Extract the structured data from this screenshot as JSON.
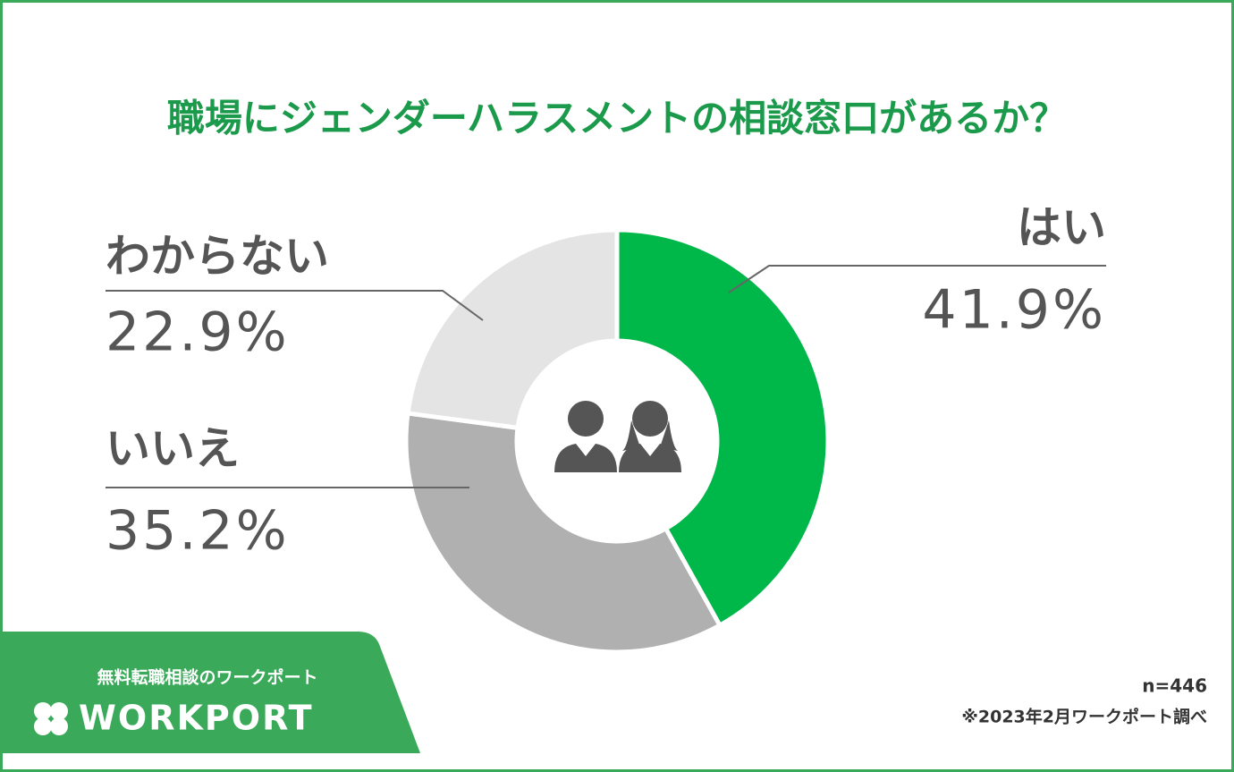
{
  "chart_data": {
    "type": "donut",
    "title": "職場にジェンダーハラスメントの相談窓口があるか？",
    "categories": [
      "はい",
      "いいえ",
      "わからない"
    ],
    "values": [
      41.9,
      35.2,
      22.9
    ],
    "value_labels": [
      "41.9%",
      "35.2%",
      "22.9%"
    ],
    "colors": [
      "#00b74a",
      "#b0b0b0",
      "#e4e4e4"
    ],
    "note": "n=446",
    "source": "※2023年2月ワークポート調べ"
  },
  "brand": {
    "tagline": "無料転職相談のワークポート",
    "name": "WORKPORT"
  }
}
